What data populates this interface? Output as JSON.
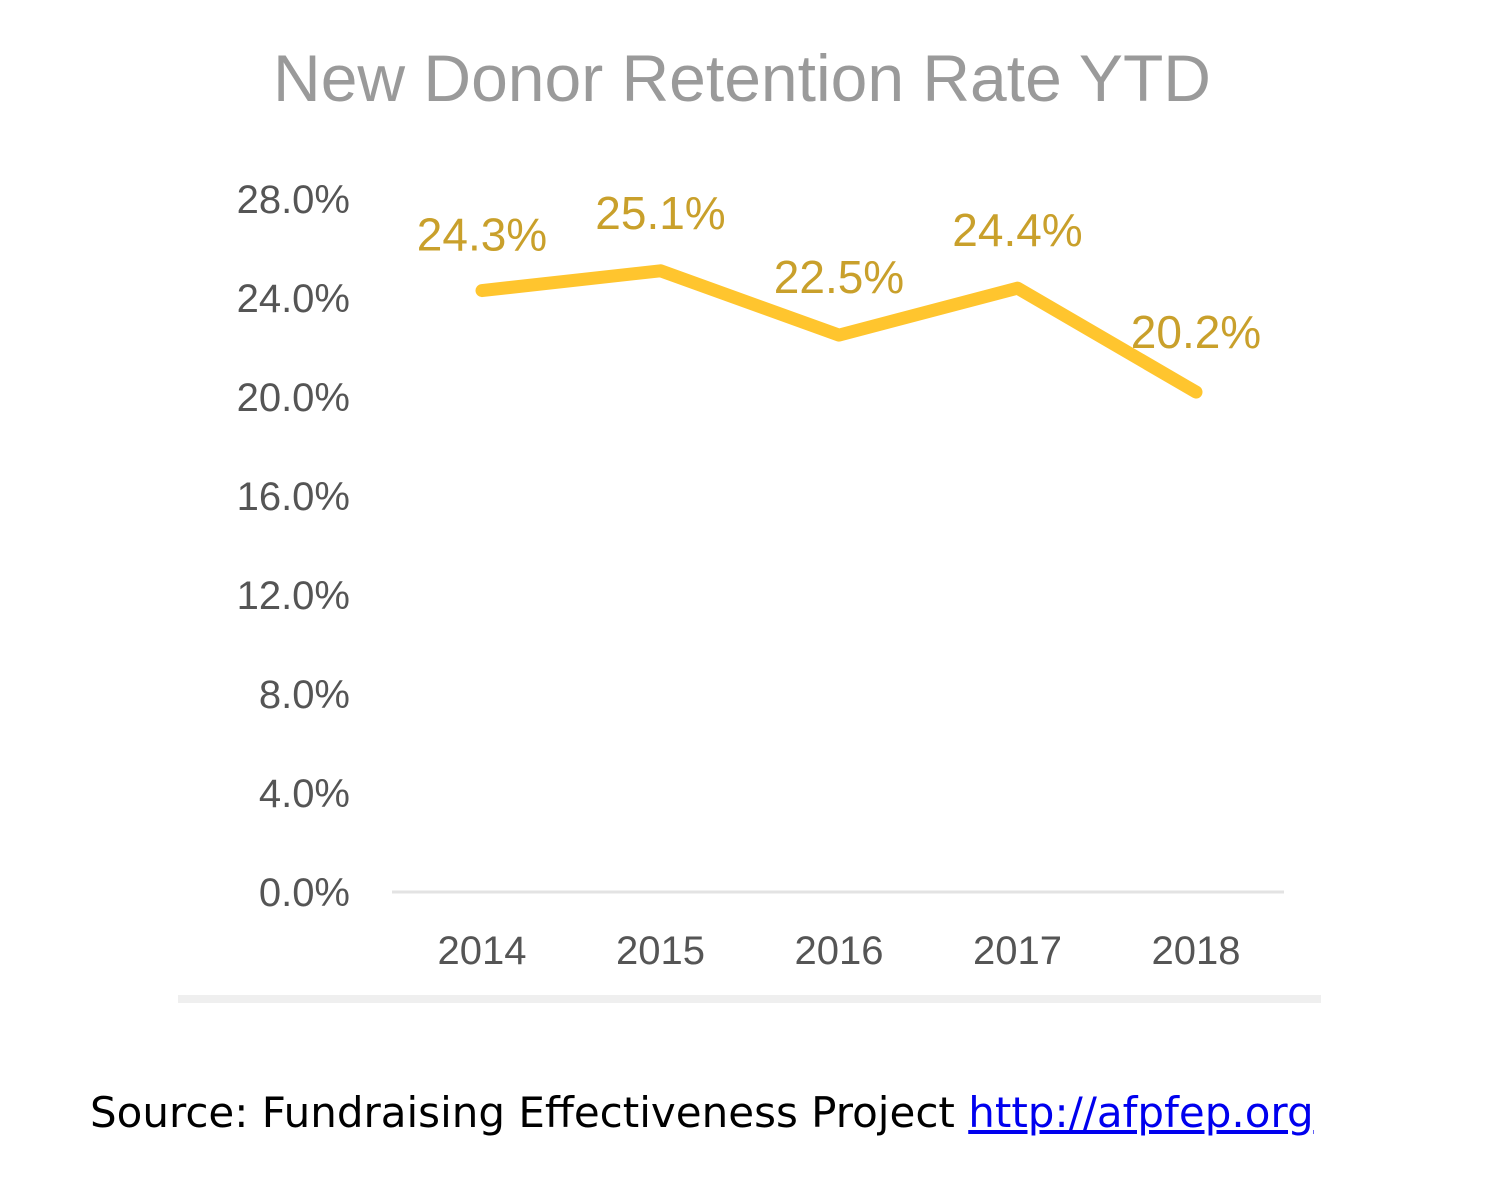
{
  "chart_data": {
    "type": "line",
    "title": "New Donor Retention Rate YTD",
    "categories": [
      "2014",
      "2015",
      "2016",
      "2017",
      "2018"
    ],
    "series": [
      {
        "values": [
          24.3,
          25.1,
          22.5,
          24.4,
          20.2
        ],
        "labels": [
          "24.3%",
          "25.1%",
          "22.5%",
          "24.4%",
          "20.2%"
        ]
      }
    ],
    "yticks": [
      "0.0%",
      "4.0%",
      "8.0%",
      "12.0%",
      "16.0%",
      "20.0%",
      "24.0%",
      "28.0%"
    ],
    "ylim": [
      0,
      28
    ],
    "xlabel": "",
    "ylabel": "",
    "grid": false,
    "colors": {
      "line": "#FFC52E",
      "label": "#C9A02B",
      "axis": "#e3e3e3"
    }
  },
  "source": {
    "text": "Source: Fundraising Effectiveness Project ",
    "link_text": "http://afpfep.org"
  }
}
